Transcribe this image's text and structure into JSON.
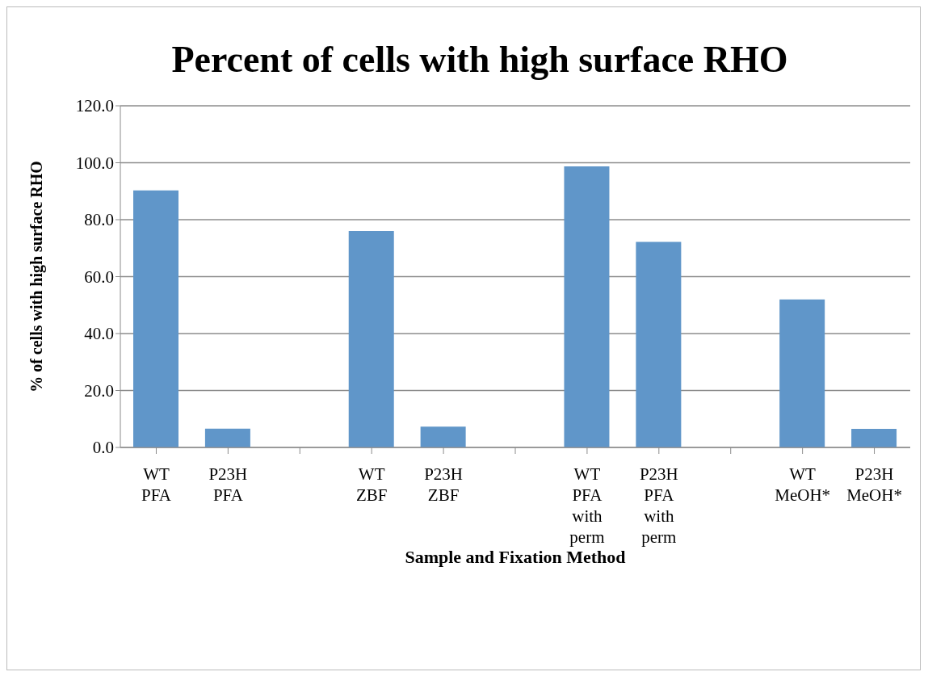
{
  "chart_data": {
    "type": "bar",
    "title": "Percent of cells with high surface RHO",
    "xlabel": "Sample and Fixation Method",
    "ylabel": "% of cells with high surface RHO",
    "categories": [
      "WT\nPFA",
      "P23H\nPFA",
      null,
      "WT\nZBF",
      "P23H\nZBF",
      null,
      "WT\nPFA\nwith\nperm",
      "P23H\nPFA\nwith\nperm",
      null,
      "WT\nMeOH*",
      "P23H\nMeOH*"
    ],
    "values": [
      90.3,
      6.6,
      null,
      76.0,
      7.3,
      null,
      98.7,
      72.2,
      null,
      52.0,
      6.5
    ],
    "color": "#6096c9",
    "ylim": [
      0,
      120
    ],
    "yticks": [
      {
        "value": 0,
        "label": "0.0"
      },
      {
        "value": 20,
        "label": "20.0"
      },
      {
        "value": 40,
        "label": "40.0"
      },
      {
        "value": 60,
        "label": "60.0"
      },
      {
        "value": 80,
        "label": "80.0"
      },
      {
        "value": 100,
        "label": "100.0"
      },
      {
        "value": 120,
        "label": "120.0"
      }
    ],
    "grid": "y"
  }
}
